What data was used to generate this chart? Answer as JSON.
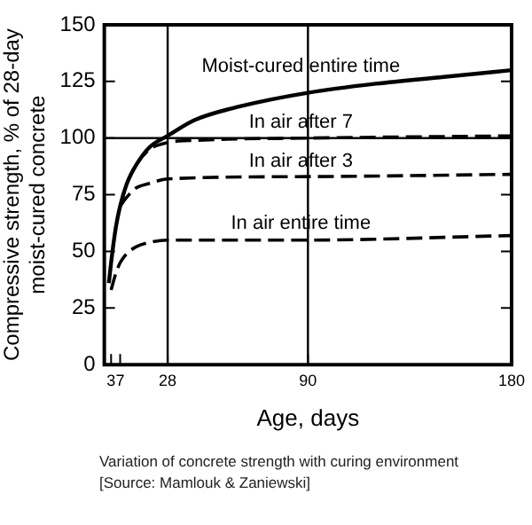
{
  "chart_data": {
    "type": "line",
    "xlabel": "Age, days",
    "ylabel": "Compressive strength, % of 28-day\nmoist-cured concrete",
    "xlim": [
      0,
      180
    ],
    "xticks": [
      3,
      7,
      28,
      90,
      180
    ],
    "ylim": [
      0,
      150
    ],
    "yticks": [
      0,
      25,
      50,
      75,
      100,
      125,
      150
    ],
    "grid": false,
    "legend": false,
    "marker": "none",
    "ref_lines": [
      {
        "axis": "x",
        "value": 28,
        "color": "#000000"
      },
      {
        "axis": "x",
        "value": 90,
        "color": "#000000"
      },
      {
        "axis": "y",
        "value": 100,
        "color": "#000000"
      }
    ],
    "series": [
      {
        "name": "Moist-cured entire time",
        "color": "#000000",
        "line_style": "solid",
        "x": [
          2,
          3,
          5,
          7,
          10,
          14,
          20,
          28,
          40,
          60,
          90,
          120,
          150,
          180
        ],
        "values": [
          36,
          45,
          60,
          70,
          80,
          88,
          96,
          101,
          108,
          114,
          120,
          124,
          127,
          130
        ]
      },
      {
        "name": "In air after 7",
        "color": "#000000",
        "line_style": "dashed",
        "x": [
          7,
          10,
          14,
          20,
          28,
          40,
          90,
          180
        ],
        "values": [
          70,
          80,
          88,
          95,
          98,
          99,
          100,
          101
        ]
      },
      {
        "name": "In air after 3",
        "color": "#000000",
        "line_style": "dashed",
        "x": [
          7,
          10,
          14,
          20,
          28,
          90,
          180
        ],
        "values": [
          70,
          74,
          78,
          80,
          82,
          83,
          84
        ]
      },
      {
        "name": "In air entire time",
        "color": "#000000",
        "line_style": "dashed",
        "x": [
          3,
          5,
          7,
          10,
          14,
          20,
          28,
          90,
          180
        ],
        "values": [
          33,
          40,
          45,
          49,
          52,
          54,
          55,
          55,
          57
        ]
      }
    ],
    "annotations": [
      "Variation of concrete strength with curing environment",
      "[Source: Mamlouk & Zaniewski]"
    ]
  }
}
